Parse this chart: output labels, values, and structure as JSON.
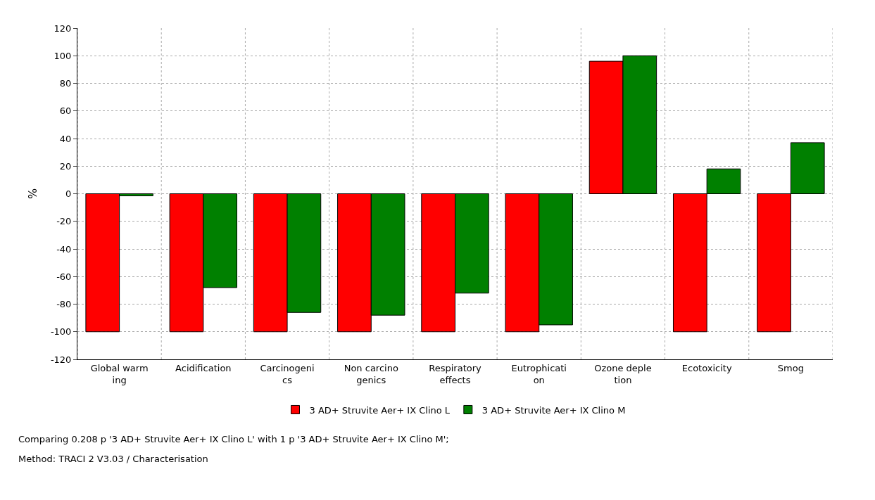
{
  "chart_data": {
    "type": "bar",
    "ylabel": "%",
    "categories": [
      "Global warm\ning",
      "Acidification",
      "Carcinogeni\ncs",
      "Non carcino\ngenics",
      "Respiratory\neffects",
      "Eutrophicati\non",
      "Ozone deple\ntion",
      "Ecotoxicity",
      "Smog"
    ],
    "series": [
      {
        "name": "3 AD+ Struvite Aer+ IX Clino L",
        "color": "#ff0000",
        "values": [
          -100,
          -100,
          -100,
          -100,
          -100,
          -100,
          96,
          -100,
          -100
        ]
      },
      {
        "name": "3 AD+ Struvite Aer+ IX Clino M",
        "color": "#008000",
        "values": [
          -1.5,
          -68,
          -86,
          -88,
          -72,
          -95,
          100,
          18,
          37
        ]
      }
    ],
    "ylim": [
      -120,
      120
    ],
    "yticks": [
      -120,
      -100,
      -80,
      -60,
      -40,
      -20,
      0,
      20,
      40,
      60,
      80,
      100,
      120
    ],
    "grid": true,
    "legend": "bottom",
    "annotations": [
      "Comparing 0.208 p '3 AD+ Struvite Aer+ IX Clino L' with 1 p '3 AD+ Struvite Aer+ IX Clino M';",
      "Method: TRACI 2 V3.03 / Characterisation"
    ]
  }
}
